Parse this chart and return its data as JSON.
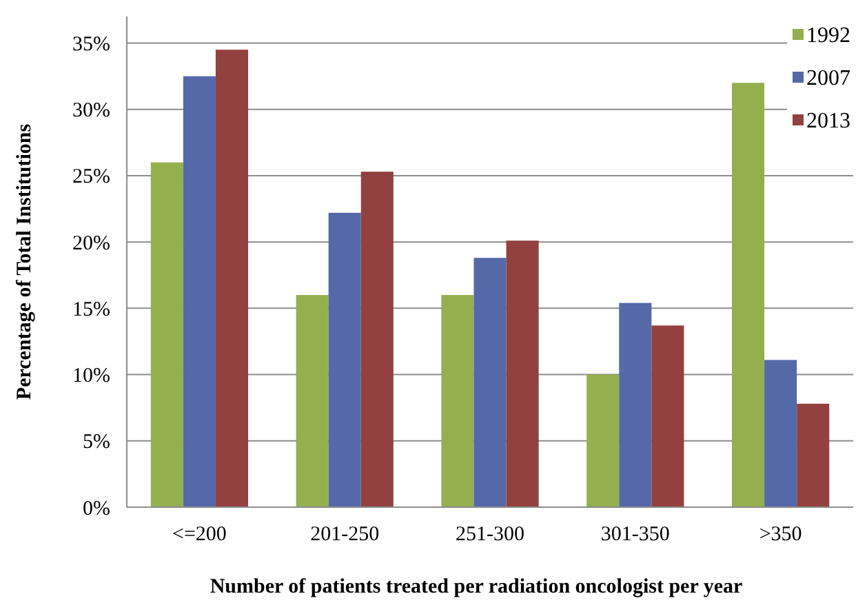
{
  "chart_data": {
    "type": "bar",
    "xlabel": "Number of patients treated per radiation oncologist per year",
    "ylabel": "Percentage of Total Institutions",
    "categories": [
      "<=200",
      "201-250",
      "251-300",
      "301-350",
      ">350"
    ],
    "series": [
      {
        "name": "1992",
        "color": "#95af4f",
        "values": [
          26,
          16,
          16,
          10,
          32
        ]
      },
      {
        "name": "2007",
        "color": "#5569a9",
        "values": [
          32.5,
          22.2,
          18.8,
          15.4,
          11.1
        ]
      },
      {
        "name": "2013",
        "color": "#924140",
        "values": [
          34.5,
          25.3,
          20.1,
          13.7,
          7.8
        ]
      }
    ],
    "ylim": [
      0,
      37
    ],
    "yticks": [
      {
        "value": 0,
        "label": "0%"
      },
      {
        "value": 5,
        "label": "5%"
      },
      {
        "value": 10,
        "label": "10%"
      },
      {
        "value": 15,
        "label": "15%"
      },
      {
        "value": 20,
        "label": "20%"
      },
      {
        "value": 25,
        "label": "25%"
      },
      {
        "value": 30,
        "label": "30%"
      },
      {
        "value": 35,
        "label": "35%"
      }
    ],
    "grid": "y",
    "legend": "top right"
  }
}
